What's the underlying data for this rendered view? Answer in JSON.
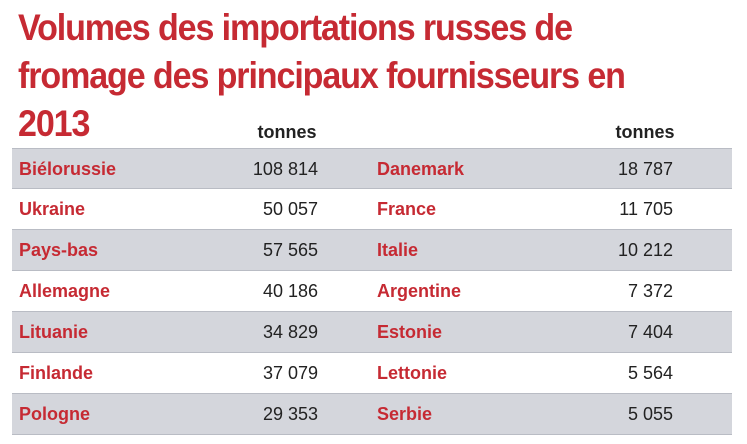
{
  "title": "Volumes des importations russes de fromage des principaux fournisseurs en 2013",
  "headers": {
    "left_unit": "tonnes",
    "right_unit": "tonnes"
  },
  "rows": [
    {
      "left_country": "Biélorussie",
      "left_value": "108 814",
      "right_country": "Danemark",
      "right_value": "18 787"
    },
    {
      "left_country": "Ukraine",
      "left_value": "50 057",
      "right_country": "France",
      "right_value": "11 705"
    },
    {
      "left_country": "Pays-bas",
      "left_value": "57 565",
      "right_country": "Italie",
      "right_value": "10 212"
    },
    {
      "left_country": "Allemagne",
      "left_value": "40 186",
      "right_country": "Argentine",
      "right_value": "7 372"
    },
    {
      "left_country": "Lituanie",
      "left_value": "34 829",
      "right_country": "Estonie",
      "right_value": "7 404"
    },
    {
      "left_country": "Finlande",
      "left_value": "37 079",
      "right_country": "Lettonie",
      "right_value": "5 564"
    },
    {
      "left_country": "Pologne",
      "left_value": "29 353",
      "right_country": "Serbie",
      "right_value": "5 055"
    }
  ],
  "colors": {
    "accent": "#c62a33",
    "stripe": "#d4d6dc",
    "rule": "#b9bcc4"
  }
}
